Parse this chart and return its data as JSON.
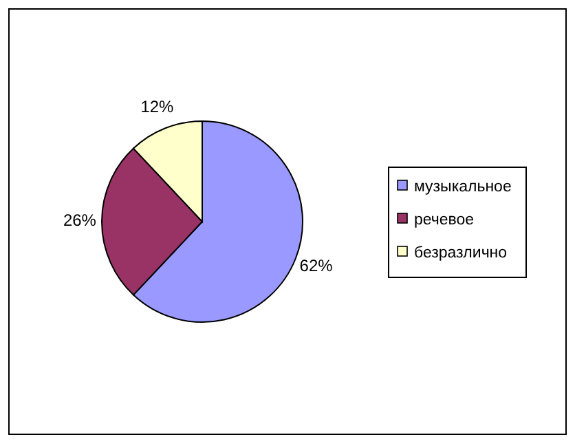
{
  "chart_data": {
    "type": "pie",
    "categories": [
      "музыкальное",
      "речевое",
      "безразлично"
    ],
    "values": [
      62,
      26,
      12
    ],
    "colors": [
      "#9999ff",
      "#993366",
      "#ffffcc"
    ],
    "value_labels": [
      "62%",
      "26%",
      "12%"
    ],
    "legend": "right"
  }
}
